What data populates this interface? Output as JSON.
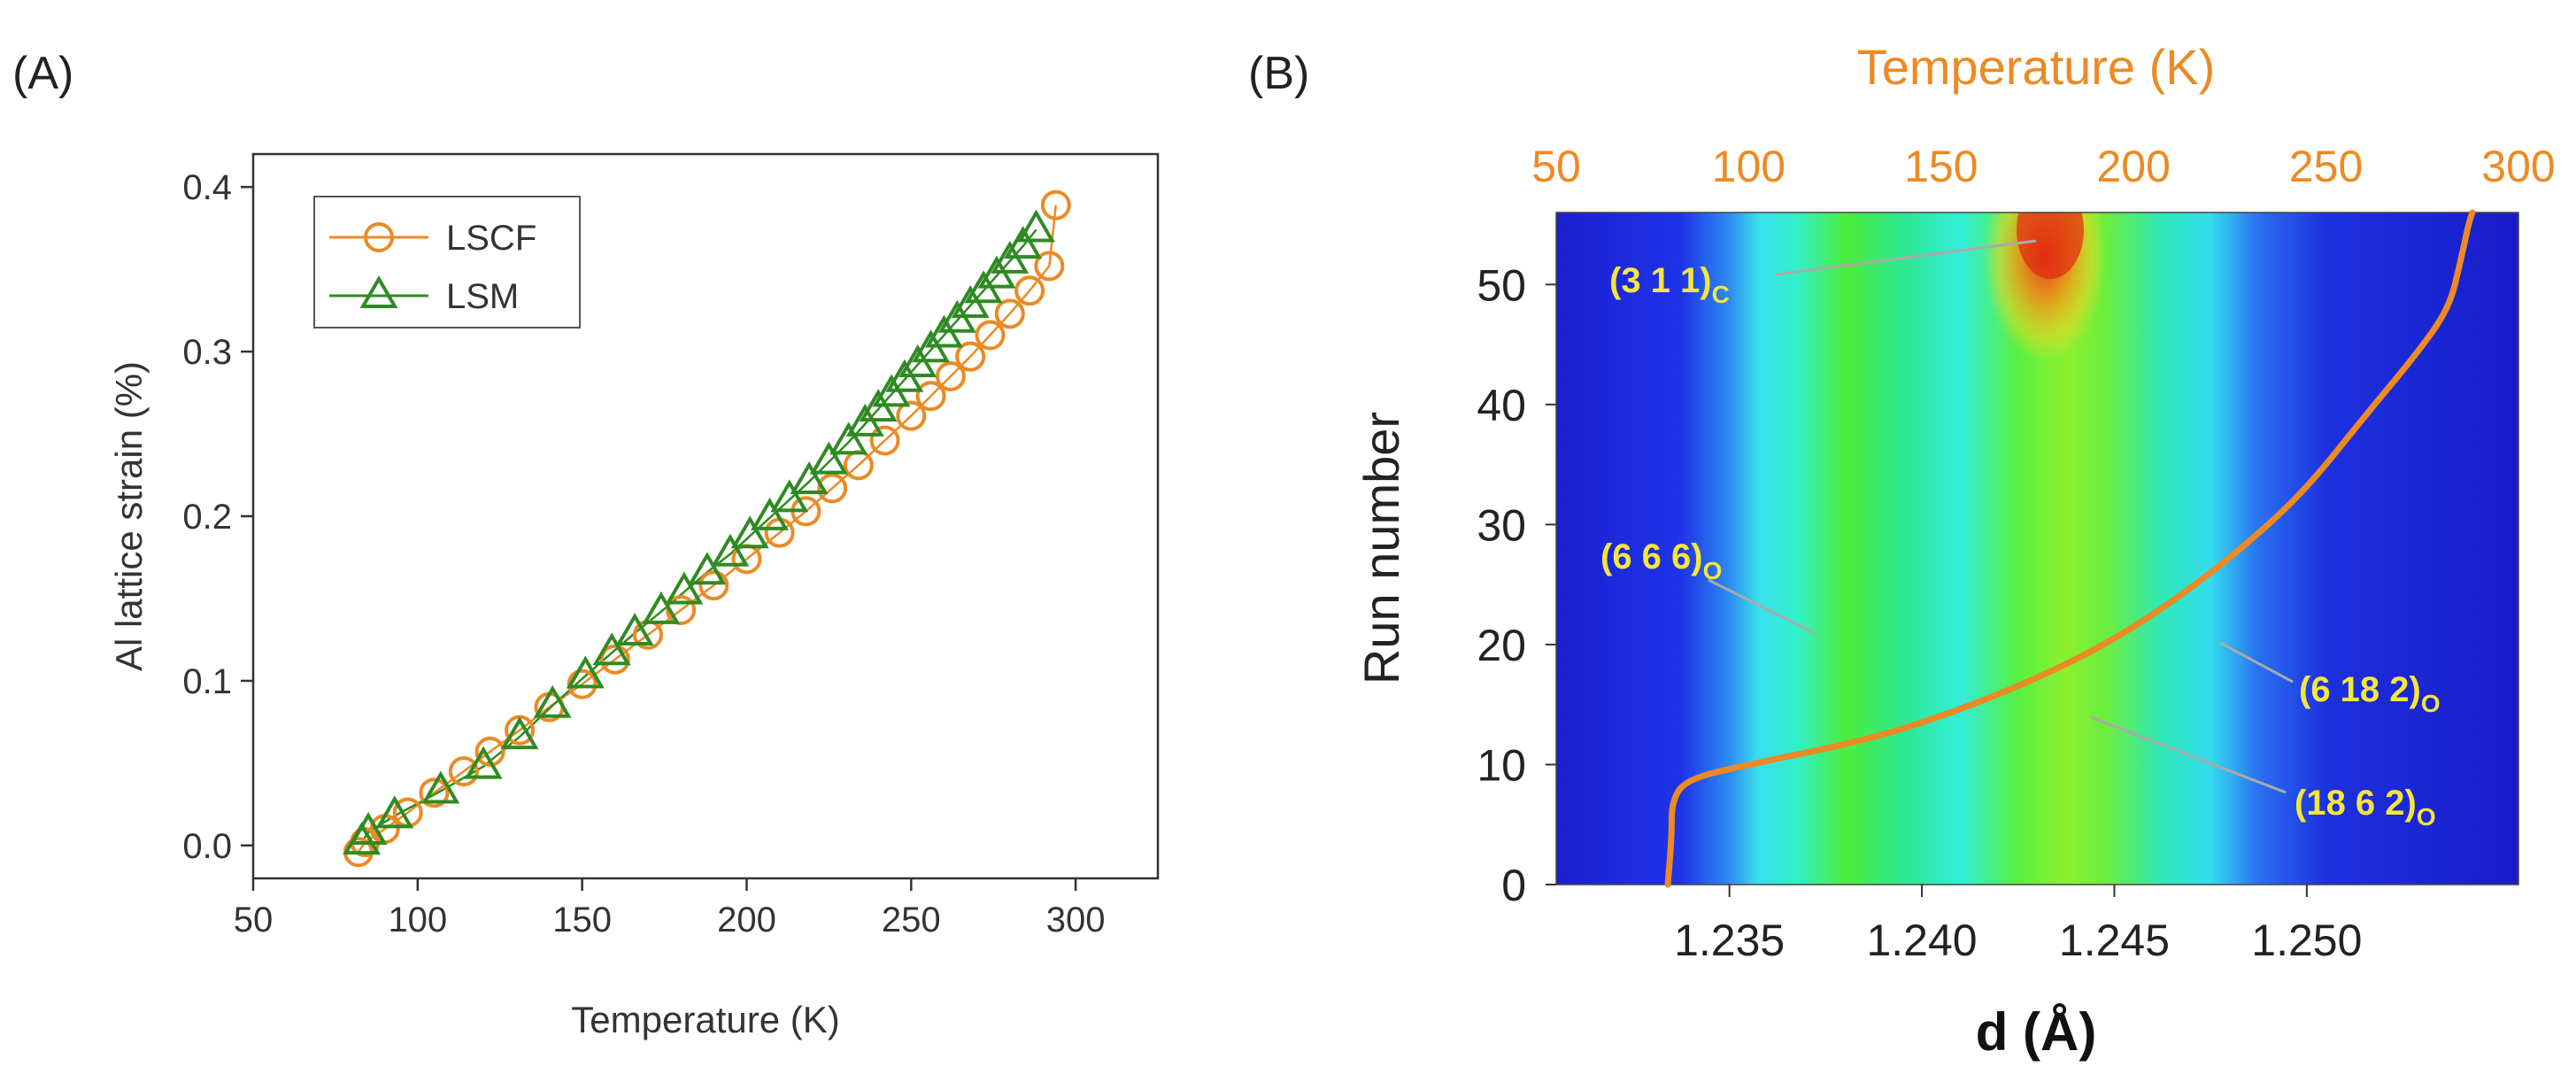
{
  "panel_labels": {
    "a": "(A)",
    "b": "(B)"
  },
  "colors": {
    "lscf": "#ec8a24",
    "lsm": "#2e8b22",
    "temperature_curve": "#ec8a24",
    "label_yellow": "#f5e63c"
  },
  "chart_data": [
    {
      "id": "A",
      "type": "scatter",
      "xlabel": "Temperature (K)",
      "ylabel": "Al lattice strain (%)",
      "xlim": [
        50,
        325
      ],
      "ylim": [
        -0.02,
        0.42
      ],
      "xticks": [
        50,
        100,
        150,
        200,
        250,
        300
      ],
      "xtick_labels": [
        "50",
        "100",
        "150",
        "200",
        "250",
        "300"
      ],
      "yticks": [
        0.0,
        0.1,
        0.2,
        0.3,
        0.4
      ],
      "ytick_labels": [
        "0.0",
        "0.1",
        "0.2",
        "0.3",
        "0.4"
      ],
      "legend_position": "top-left",
      "series": [
        {
          "name": "LSCF",
          "marker": "circle",
          "color": "#ec8a24",
          "x": [
            82,
            84,
            90,
            97,
            105,
            114,
            122,
            131,
            140,
            150,
            160,
            170,
            180,
            190,
            200,
            210,
            218,
            226,
            234,
            242,
            250,
            256,
            262,
            268,
            274,
            280,
            286,
            292,
            294
          ],
          "y": [
            -0.004,
            0.002,
            0.01,
            0.02,
            0.032,
            0.045,
            0.057,
            0.07,
            0.084,
            0.098,
            0.113,
            0.128,
            0.143,
            0.158,
            0.174,
            0.19,
            0.203,
            0.217,
            0.231,
            0.246,
            0.261,
            0.273,
            0.285,
            0.297,
            0.31,
            0.323,
            0.337,
            0.352,
            0.389
          ]
        },
        {
          "name": "LSM",
          "marker": "triangle",
          "color": "#2e8b22",
          "x": [
            83,
            85,
            93,
            107,
            120,
            131,
            141,
            151,
            159,
            166,
            174,
            181,
            188,
            195,
            201,
            207,
            213,
            219,
            225,
            231,
            236,
            240,
            244,
            248,
            252,
            256,
            260,
            264,
            268,
            272,
            276,
            280,
            284,
            288
          ],
          "y": [
            0.002,
            0.008,
            0.018,
            0.033,
            0.048,
            0.066,
            0.085,
            0.103,
            0.117,
            0.129,
            0.142,
            0.154,
            0.166,
            0.177,
            0.188,
            0.199,
            0.21,
            0.221,
            0.233,
            0.245,
            0.256,
            0.265,
            0.274,
            0.283,
            0.292,
            0.301,
            0.31,
            0.319,
            0.328,
            0.337,
            0.346,
            0.355,
            0.364,
            0.374
          ]
        }
      ]
    },
    {
      "id": "B",
      "type": "heatmap",
      "xlabel": "d (Å)",
      "ylabel": "Run number",
      "top_xlabel": "Temperature (K)",
      "xlim": [
        1.2305,
        1.2555
      ],
      "ylim": [
        0,
        56
      ],
      "xticks": [
        1.235,
        1.24,
        1.245,
        1.25
      ],
      "xtick_labels": [
        "1.235",
        "1.240",
        "1.245",
        "1.250"
      ],
      "yticks": [
        0,
        10,
        20,
        30,
        40,
        50
      ],
      "ytick_labels": [
        "0",
        "10",
        "20",
        "30",
        "40",
        "50"
      ],
      "top_xlim": [
        50,
        300
      ],
      "top_xticks": [
        50,
        100,
        150,
        200,
        250,
        300
      ],
      "top_xtick_labels": [
        "50",
        "100",
        "150",
        "200",
        "250",
        "300"
      ],
      "temperature_curve": {
        "temperature": [
          79,
          80,
          80,
          84,
          100,
          130,
          150,
          170,
          190,
          210,
          230,
          245,
          260,
          273,
          282,
          285,
          287,
          288
        ],
        "run": [
          0,
          4,
          7,
          8.8,
          10,
          12,
          14,
          16.5,
          19.5,
          23.5,
          28.5,
          33,
          39,
          44,
          48,
          52,
          55,
          56
        ]
      },
      "peak_labels": [
        {
          "main": "(3 1 1)",
          "sub": "C"
        },
        {
          "main": "(6 6 6)",
          "sub": "O"
        },
        {
          "main": "(6 18 2)",
          "sub": "O"
        },
        {
          "main": "(18 6 2)",
          "sub": "O"
        }
      ]
    }
  ]
}
